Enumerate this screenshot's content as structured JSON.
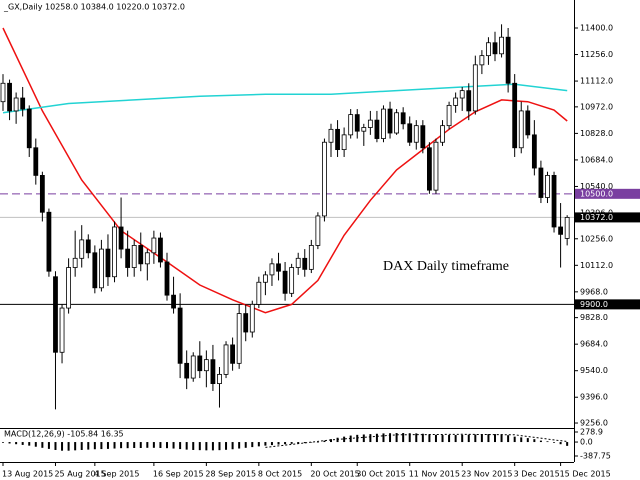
{
  "chart_data": {
    "type": "candlestick",
    "header": "_GX,Daily  10258.0 10384.0 10220.0 10372.0",
    "annotation": "DAX Daily timeframe",
    "ohlc": [
      [
        11000,
        11150,
        10950,
        11100
      ],
      [
        11100,
        11120,
        10900,
        10950
      ],
      [
        10950,
        11050,
        10880,
        11020
      ],
      [
        11020,
        11080,
        10920,
        10960
      ],
      [
        10960,
        10980,
        10700,
        10750
      ],
      [
        10750,
        10800,
        10550,
        10600
      ],
      [
        10600,
        10620,
        10350,
        10400
      ],
      [
        10400,
        10420,
        10050,
        10080
      ],
      [
        10050,
        10080,
        9330,
        9640
      ],
      [
        9640,
        9900,
        9580,
        9880
      ],
      [
        9880,
        10150,
        9850,
        10100
      ],
      [
        10100,
        10300,
        10050,
        10150
      ],
      [
        10150,
        10330,
        10100,
        10250
      ],
      [
        10250,
        10280,
        10150,
        10180
      ],
      [
        10180,
        10220,
        9960,
        9990
      ],
      [
        9990,
        10250,
        9970,
        10200
      ],
      [
        10200,
        10280,
        10000,
        10050
      ],
      [
        10050,
        10350,
        10020,
        10320
      ],
      [
        10320,
        10480,
        10150,
        10200
      ],
      [
        10200,
        10300,
        10050,
        10100
      ],
      [
        10100,
        10250,
        10050,
        10220
      ],
      [
        10220,
        10290,
        10080,
        10120
      ],
      [
        10120,
        10200,
        10030,
        10180
      ],
      [
        10180,
        10300,
        10120,
        10260
      ],
      [
        10260,
        10290,
        10100,
        10130
      ],
      [
        10130,
        10180,
        9920,
        9950
      ],
      [
        9950,
        10050,
        9850,
        9880
      ],
      [
        9880,
        9960,
        9500,
        9580
      ],
      [
        9580,
        9650,
        9440,
        9500
      ],
      [
        9500,
        9640,
        9480,
        9620
      ],
      [
        9620,
        9700,
        9500,
        9540
      ],
      [
        9540,
        9650,
        9450,
        9600
      ],
      [
        9600,
        9680,
        9430,
        9470
      ],
      [
        9470,
        9560,
        9340,
        9520
      ],
      [
        9520,
        9700,
        9500,
        9680
      ],
      [
        9680,
        9720,
        9540,
        9580
      ],
      [
        9580,
        9900,
        9550,
        9850
      ],
      [
        9850,
        9900,
        9700,
        9750
      ],
      [
        9750,
        9920,
        9720,
        9900
      ],
      [
        9900,
        10050,
        9880,
        10020
      ],
      [
        10020,
        10080,
        9950,
        10060
      ],
      [
        10060,
        10150,
        10000,
        10120
      ],
      [
        10120,
        10180,
        10030,
        10080
      ],
      [
        10080,
        10130,
        9920,
        9960
      ],
      [
        9960,
        10120,
        9940,
        10100
      ],
      [
        10100,
        10180,
        10060,
        10150
      ],
      [
        10150,
        10200,
        10050,
        10090
      ],
      [
        10090,
        10250,
        10070,
        10220
      ],
      [
        10220,
        10400,
        10200,
        10380
      ],
      [
        10380,
        10800,
        10350,
        10780
      ],
      [
        10780,
        10880,
        10700,
        10850
      ],
      [
        10850,
        10900,
        10700,
        10740
      ],
      [
        10740,
        10860,
        10700,
        10820
      ],
      [
        10820,
        10960,
        10800,
        10930
      ],
      [
        10930,
        10960,
        10800,
        10840
      ],
      [
        10840,
        10880,
        10760,
        10860
      ],
      [
        10860,
        10950,
        10820,
        10900
      ],
      [
        10900,
        10950,
        10780,
        10800
      ],
      [
        10800,
        10980,
        10780,
        10960
      ],
      [
        10960,
        11000,
        10800,
        10830
      ],
      [
        10830,
        10960,
        10820,
        10940
      ],
      [
        10940,
        10970,
        10850,
        10880
      ],
      [
        10880,
        10920,
        10760,
        10780
      ],
      [
        10780,
        10900,
        10740,
        10870
      ],
      [
        10870,
        10900,
        10720,
        10750
      ],
      [
        10750,
        10780,
        10500,
        10520
      ],
      [
        10520,
        10800,
        10500,
        10780
      ],
      [
        10780,
        10900,
        10760,
        10870
      ],
      [
        10870,
        11000,
        10850,
        10980
      ],
      [
        10980,
        11050,
        10940,
        11020
      ],
      [
        11020,
        11080,
        10950,
        11060
      ],
      [
        11060,
        11100,
        10900,
        10950
      ],
      [
        10950,
        11250,
        10930,
        11200
      ],
      [
        11200,
        11280,
        11150,
        11250
      ],
      [
        11250,
        11350,
        11200,
        11320
      ],
      [
        11320,
        11380,
        11220,
        11260
      ],
      [
        11260,
        11420,
        11240,
        11350
      ],
      [
        11350,
        11400,
        11050,
        11100
      ],
      [
        11100,
        11150,
        10700,
        10750
      ],
      [
        10750,
        11000,
        10720,
        10950
      ],
      [
        10950,
        10980,
        10800,
        10820
      ],
      [
        10820,
        10900,
        10600,
        10640
      ],
      [
        10640,
        10680,
        10450,
        10480
      ],
      [
        10480,
        10620,
        10450,
        10600
      ],
      [
        10600,
        10620,
        10290,
        10320
      ],
      [
        10320,
        10450,
        10100,
        10280
      ],
      [
        10258,
        10384,
        10220,
        10372
      ]
    ],
    "ylim": [
      9229,
      11552
    ],
    "yticks": [
      {
        "value": 11400,
        "label": "11400.0"
      },
      {
        "value": 11256,
        "label": "11256.0"
      },
      {
        "value": 11112,
        "label": "11112.0"
      },
      {
        "value": 10972,
        "label": "10972.0"
      },
      {
        "value": 10828,
        "label": "10828.0"
      },
      {
        "value": 10684,
        "label": "10684.0"
      },
      {
        "value": 10540,
        "label": "10540.0"
      },
      {
        "value": 10396,
        "label": "10396.0"
      },
      {
        "value": 10256,
        "label": "10256.0"
      },
      {
        "value": 10112,
        "label": "10112.0"
      },
      {
        "value": 9968,
        "label": "9968.0"
      },
      {
        "value": 9828,
        "label": "9828.0"
      },
      {
        "value": 9684,
        "label": "9684.0"
      },
      {
        "value": 9540,
        "label": "9540.0"
      },
      {
        "value": 9396,
        "label": "9396.0"
      },
      {
        "value": 9256,
        "label": "9256.0"
      }
    ],
    "xticks": [
      {
        "value": 0,
        "label": "13 Aug 2015"
      },
      {
        "value": 8,
        "label": "25 Aug 2015"
      },
      {
        "value": 14,
        "label": "4 Sep 2015"
      },
      {
        "value": 23,
        "label": "16 Sep 2015"
      },
      {
        "value": 31,
        "label": "28 Sep 2015"
      },
      {
        "value": 39,
        "label": "8 Oct 2015"
      },
      {
        "value": 47,
        "label": "20 Oct 2015"
      },
      {
        "value": 54,
        "label": "30 Oct 2015"
      },
      {
        "value": 62,
        "label": "11 Nov 2015"
      },
      {
        "value": 70,
        "label": "23 Nov 2015"
      },
      {
        "value": 78,
        "label": "3 Dec 2015"
      },
      {
        "value": 85,
        "label": "15 Dec 2015"
      }
    ],
    "lines": [
      {
        "color": "#ee1111",
        "x": [
          0,
          6,
          12,
          18,
          25,
          30,
          35,
          40,
          44,
          48,
          52,
          56,
          60,
          64,
          68,
          72,
          76,
          80,
          84,
          86
        ],
        "values": [
          11400,
          10950,
          10575,
          10300,
          10130,
          10005,
          9925,
          9855,
          9900,
          10030,
          10275,
          10465,
          10630,
          10740,
          10850,
          10945,
          11010,
          11000,
          10955,
          10895
        ]
      },
      {
        "color": "#22d3d3",
        "x": [
          0,
          10,
          20,
          30,
          40,
          50,
          60,
          70,
          78,
          86
        ],
        "values": [
          10940,
          10990,
          11010,
          11030,
          11040,
          11040,
          11060,
          11080,
          11095,
          11060
        ]
      }
    ],
    "levels": [
      {
        "value": 10500,
        "label": "10500.0",
        "color": "#7a3fa0"
      },
      {
        "value": 9900,
        "label": "9900.0",
        "color": "#000000"
      }
    ],
    "current": {
      "value": 10372,
      "label": "10372.0"
    },
    "macd": {
      "label": "MACD(12,26,9) -105.84 16.35",
      "ylim": [
        -554,
        390
      ],
      "yticks": [
        {
          "value": 278.9,
          "label": "278.9"
        },
        {
          "value": 0,
          "label": "0.0"
        },
        {
          "value": -387.75,
          "label": "-387.75"
        }
      ],
      "histogram": [
        -20,
        -40,
        -60,
        -80,
        -100,
        -130,
        -160,
        -190,
        -220,
        -240,
        -240,
        -230,
        -220,
        -210,
        -200,
        -195,
        -190,
        -180,
        -170,
        -170,
        -165,
        -165,
        -160,
        -160,
        -165,
        -170,
        -180,
        -195,
        -210,
        -220,
        -225,
        -230,
        -230,
        -225,
        -215,
        -200,
        -180,
        -160,
        -140,
        -120,
        -100,
        -85,
        -70,
        -60,
        -50,
        -40,
        -30,
        -15,
        0,
        40,
        80,
        120,
        150,
        180,
        200,
        210,
        220,
        230,
        240,
        245,
        250,
        250,
        245,
        240,
        230,
        210,
        200,
        195,
        195,
        195,
        200,
        205,
        210,
        215,
        220,
        220,
        215,
        190,
        150,
        130,
        110,
        80,
        40,
        20,
        -20,
        -60,
        -106
      ],
      "signal_x": [
        40,
        50,
        60,
        70,
        78,
        84,
        86
      ],
      "signal": [
        -150,
        60,
        200,
        215,
        200,
        60,
        16.35
      ]
    }
  }
}
